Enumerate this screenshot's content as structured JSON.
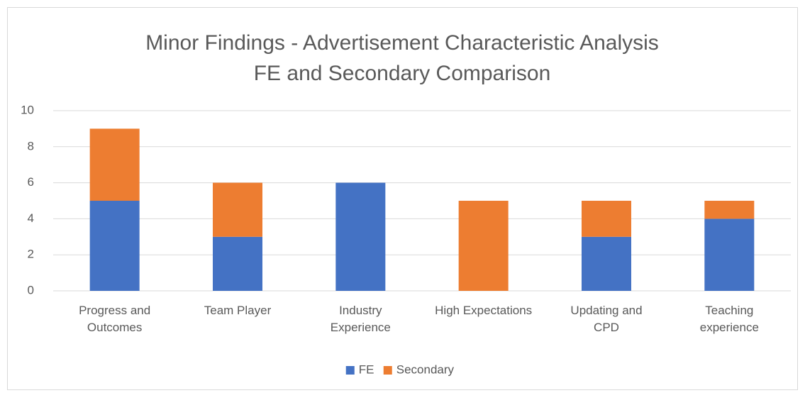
{
  "chart_data": {
    "type": "stacked_bar",
    "title": "Minor Findings - Advertisement Characteristic Analysis",
    "subtitle": "FE and Secondary Comparison",
    "categories": [
      "Progress and Outcomes",
      "Team Player",
      "Industry Experience",
      "High Expectations",
      "Updating and CPD",
      "Teaching experience"
    ],
    "series": [
      {
        "name": "FE",
        "color": "#4472c4",
        "values": [
          5,
          3,
          6,
          0,
          3,
          4
        ]
      },
      {
        "name": "Secondary",
        "color": "#ed7d31",
        "values": [
          4,
          3,
          0,
          5,
          2,
          1
        ]
      }
    ],
    "ylim": [
      0,
      10
    ],
    "yticks": [
      0,
      2,
      4,
      6,
      8,
      10
    ],
    "grid": true,
    "legend": "bottom"
  }
}
